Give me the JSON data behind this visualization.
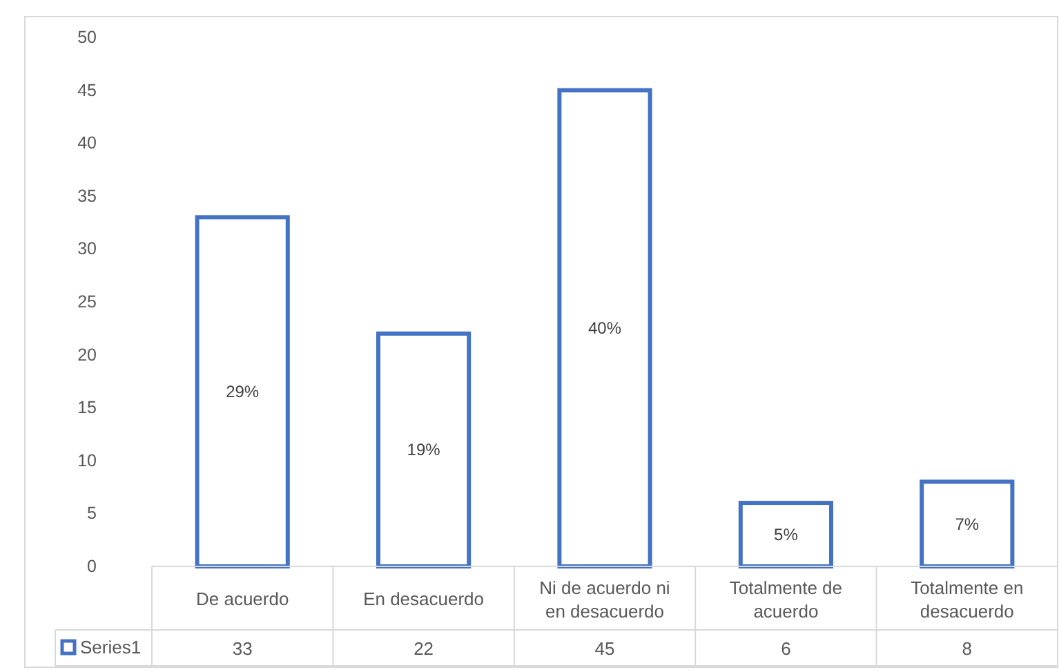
{
  "chart_data": {
    "type": "bar",
    "categories": [
      "De acuerdo",
      "En desacuerdo",
      "Ni de acuerdo ni en desacuerdo",
      "Totalmente de acuerdo",
      "Totalmente en desacuerdo"
    ],
    "series": [
      {
        "name": "Series1",
        "color": "#4472c4",
        "values": [
          33,
          22,
          45,
          6,
          8
        ]
      }
    ],
    "annotations": [
      "29%",
      "19%",
      "40%",
      "5%",
      "7%"
    ],
    "ylim": [
      0,
      50
    ],
    "yticks": [
      0,
      5,
      10,
      15,
      20,
      25,
      30,
      35,
      40,
      45,
      50
    ],
    "data_labels": true,
    "legend": "bottom",
    "grid": false
  }
}
